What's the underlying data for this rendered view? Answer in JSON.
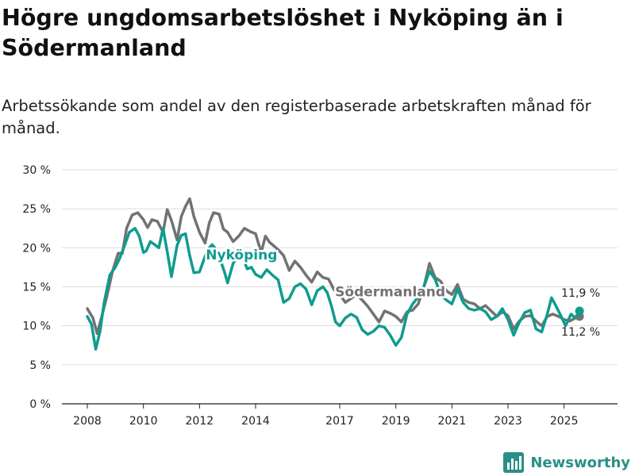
{
  "title": "Högre ungdomsarbetslöshet i Nyköping än i Södermanland",
  "subtitle": "Arbetssökande som andel av den registerbaserade arbetskraften månad för månad.",
  "brand": "Newsworthy",
  "colors": {
    "nykoping": "#0f9c8f",
    "sodermanland": "#727272",
    "grid": "#dddddd",
    "axis": "#222222"
  },
  "icons": {
    "brand_logo": "bar-chart-logo-icon"
  },
  "chart_data": {
    "type": "line",
    "ylim": [
      0,
      30
    ],
    "yticks": [
      0,
      5,
      10,
      15,
      20,
      25,
      30
    ],
    "ytick_labels": [
      "0 %",
      "5 %",
      "10 %",
      "15 %",
      "20 %",
      "25 %",
      "30 %"
    ],
    "xlim": [
      2008.0,
      2026.0
    ],
    "xticks": [
      2008,
      2010,
      2012,
      2014,
      2017,
      2019,
      2021,
      2023,
      2025
    ],
    "xtick_labels": [
      "2008",
      "2010",
      "2012",
      "2014",
      "2017",
      "2019",
      "2021",
      "2023",
      "2025"
    ],
    "series": [
      {
        "name": "Södermanland",
        "label": "Södermanland",
        "end_label": "11,2 %",
        "points": [
          [
            2008.0,
            12.2
          ],
          [
            2008.2,
            11.0
          ],
          [
            2008.35,
            9.0
          ],
          [
            2008.5,
            11.0
          ],
          [
            2008.7,
            13.8
          ],
          [
            2008.9,
            17.0
          ],
          [
            2009.1,
            19.3
          ],
          [
            2009.25,
            19.3
          ],
          [
            2009.4,
            22.5
          ],
          [
            2009.6,
            24.2
          ],
          [
            2009.8,
            24.5
          ],
          [
            2010.0,
            23.6
          ],
          [
            2010.15,
            22.6
          ],
          [
            2010.3,
            23.6
          ],
          [
            2010.5,
            23.4
          ],
          [
            2010.7,
            22.0
          ],
          [
            2010.85,
            24.9
          ],
          [
            2011.0,
            23.5
          ],
          [
            2011.2,
            21.0
          ],
          [
            2011.35,
            24.0
          ],
          [
            2011.5,
            25.3
          ],
          [
            2011.65,
            26.3
          ],
          [
            2011.8,
            24.0
          ],
          [
            2012.0,
            22.0
          ],
          [
            2012.2,
            20.6
          ],
          [
            2012.35,
            23.2
          ],
          [
            2012.5,
            24.5
          ],
          [
            2012.7,
            24.3
          ],
          [
            2012.85,
            22.4
          ],
          [
            2013.0,
            22.0
          ],
          [
            2013.2,
            20.8
          ],
          [
            2013.4,
            21.5
          ],
          [
            2013.6,
            22.5
          ],
          [
            2013.8,
            22.1
          ],
          [
            2014.0,
            21.8
          ],
          [
            2014.2,
            19.4
          ],
          [
            2014.35,
            21.5
          ],
          [
            2014.5,
            20.7
          ],
          [
            2014.7,
            20.1
          ],
          [
            2014.85,
            19.6
          ],
          [
            2015.0,
            19.0
          ],
          [
            2015.2,
            17.1
          ],
          [
            2015.4,
            18.3
          ],
          [
            2015.6,
            17.5
          ],
          [
            2015.8,
            16.5
          ],
          [
            2016.0,
            15.6
          ],
          [
            2016.2,
            16.9
          ],
          [
            2016.4,
            16.2
          ],
          [
            2016.6,
            16.0
          ],
          [
            2016.8,
            14.6
          ],
          [
            2017.0,
            14.0
          ],
          [
            2017.2,
            13.0
          ],
          [
            2017.4,
            13.5
          ],
          [
            2017.6,
            14.0
          ],
          [
            2017.8,
            13.3
          ],
          [
            2018.0,
            12.5
          ],
          [
            2018.2,
            11.5
          ],
          [
            2018.4,
            10.5
          ],
          [
            2018.6,
            11.9
          ],
          [
            2018.8,
            11.6
          ],
          [
            2019.0,
            11.2
          ],
          [
            2019.2,
            10.5
          ],
          [
            2019.4,
            11.8
          ],
          [
            2019.6,
            12.0
          ],
          [
            2019.8,
            12.8
          ],
          [
            2020.0,
            15.0
          ],
          [
            2020.2,
            18.0
          ],
          [
            2020.4,
            16.2
          ],
          [
            2020.6,
            15.7
          ],
          [
            2020.8,
            14.5
          ],
          [
            2021.0,
            14.0
          ],
          [
            2021.2,
            15.3
          ],
          [
            2021.4,
            13.4
          ],
          [
            2021.6,
            13.0
          ],
          [
            2021.8,
            12.8
          ],
          [
            2022.0,
            12.2
          ],
          [
            2022.2,
            12.6
          ],
          [
            2022.4,
            11.9
          ],
          [
            2022.6,
            11.2
          ],
          [
            2022.8,
            11.8
          ],
          [
            2023.0,
            11.3
          ],
          [
            2023.2,
            9.6
          ],
          [
            2023.4,
            10.6
          ],
          [
            2023.6,
            11.2
          ],
          [
            2023.8,
            11.3
          ],
          [
            2024.0,
            10.6
          ],
          [
            2024.2,
            10.0
          ],
          [
            2024.4,
            11.2
          ],
          [
            2024.6,
            11.5
          ],
          [
            2024.8,
            11.2
          ],
          [
            2025.0,
            10.8
          ],
          [
            2025.2,
            10.6
          ],
          [
            2025.4,
            11.0
          ],
          [
            2025.55,
            11.2
          ]
        ]
      },
      {
        "name": "Nyköping",
        "label": "Nyköping",
        "end_label": "11,9 %",
        "points": [
          [
            2008.0,
            11.2
          ],
          [
            2008.15,
            10.2
          ],
          [
            2008.3,
            7.0
          ],
          [
            2008.45,
            9.2
          ],
          [
            2008.6,
            13.0
          ],
          [
            2008.8,
            16.5
          ],
          [
            2009.0,
            17.5
          ],
          [
            2009.15,
            18.6
          ],
          [
            2009.3,
            20.0
          ],
          [
            2009.5,
            22.0
          ],
          [
            2009.7,
            22.5
          ],
          [
            2009.85,
            21.5
          ],
          [
            2010.0,
            19.4
          ],
          [
            2010.1,
            19.6
          ],
          [
            2010.25,
            20.8
          ],
          [
            2010.4,
            20.4
          ],
          [
            2010.55,
            20.0
          ],
          [
            2010.7,
            22.5
          ],
          [
            2010.85,
            19.5
          ],
          [
            2011.0,
            16.3
          ],
          [
            2011.2,
            20.3
          ],
          [
            2011.35,
            21.6
          ],
          [
            2011.5,
            21.8
          ],
          [
            2011.65,
            19.0
          ],
          [
            2011.8,
            16.8
          ],
          [
            2012.0,
            16.9
          ],
          [
            2012.15,
            18.4
          ],
          [
            2012.3,
            19.8
          ],
          [
            2012.45,
            20.4
          ],
          [
            2012.6,
            19.8
          ],
          [
            2012.75,
            18.4
          ],
          [
            2012.9,
            16.8
          ],
          [
            2013.0,
            15.5
          ],
          [
            2013.2,
            18.0
          ],
          [
            2013.4,
            19.0
          ],
          [
            2013.55,
            18.7
          ],
          [
            2013.7,
            17.3
          ],
          [
            2013.85,
            17.5
          ],
          [
            2014.0,
            16.6
          ],
          [
            2014.2,
            16.2
          ],
          [
            2014.4,
            17.2
          ],
          [
            2014.6,
            16.5
          ],
          [
            2014.8,
            15.9
          ],
          [
            2015.0,
            13.0
          ],
          [
            2015.2,
            13.5
          ],
          [
            2015.4,
            15.0
          ],
          [
            2015.6,
            15.4
          ],
          [
            2015.8,
            14.7
          ],
          [
            2016.0,
            12.7
          ],
          [
            2016.2,
            14.5
          ],
          [
            2016.4,
            15.0
          ],
          [
            2016.55,
            14.3
          ],
          [
            2016.7,
            12.6
          ],
          [
            2016.85,
            10.5
          ],
          [
            2017.0,
            10.0
          ],
          [
            2017.2,
            11.0
          ],
          [
            2017.4,
            11.5
          ],
          [
            2017.6,
            11.1
          ],
          [
            2017.8,
            9.5
          ],
          [
            2018.0,
            8.9
          ],
          [
            2018.2,
            9.3
          ],
          [
            2018.4,
            10.0
          ],
          [
            2018.6,
            9.8
          ],
          [
            2018.8,
            8.8
          ],
          [
            2019.0,
            7.5
          ],
          [
            2019.2,
            8.5
          ],
          [
            2019.4,
            11.5
          ],
          [
            2019.6,
            12.8
          ],
          [
            2019.8,
            13.7
          ],
          [
            2020.0,
            15.0
          ],
          [
            2020.2,
            17.0
          ],
          [
            2020.4,
            16.0
          ],
          [
            2020.6,
            14.0
          ],
          [
            2020.8,
            13.3
          ],
          [
            2021.0,
            12.8
          ],
          [
            2021.2,
            14.7
          ],
          [
            2021.4,
            13.0
          ],
          [
            2021.6,
            12.2
          ],
          [
            2021.8,
            12.0
          ],
          [
            2022.0,
            12.2
          ],
          [
            2022.2,
            11.8
          ],
          [
            2022.4,
            10.8
          ],
          [
            2022.6,
            11.2
          ],
          [
            2022.8,
            12.2
          ],
          [
            2023.0,
            10.8
          ],
          [
            2023.2,
            8.8
          ],
          [
            2023.4,
            10.4
          ],
          [
            2023.6,
            11.7
          ],
          [
            2023.8,
            12.0
          ],
          [
            2024.0,
            9.6
          ],
          [
            2024.2,
            9.2
          ],
          [
            2024.4,
            11.5
          ],
          [
            2024.55,
            13.6
          ],
          [
            2024.7,
            12.6
          ],
          [
            2024.9,
            11.2
          ],
          [
            2025.05,
            10.0
          ],
          [
            2025.25,
            11.5
          ],
          [
            2025.4,
            11.0
          ],
          [
            2025.55,
            11.9
          ]
        ]
      }
    ],
    "inline_labels": [
      {
        "series": "Nyköping",
        "text": "Nyköping",
        "x": 2013.5,
        "y": 18.5
      },
      {
        "series": "Södermanland",
        "text": "Södermanland",
        "x": 2018.8,
        "y": 13.8
      }
    ]
  }
}
